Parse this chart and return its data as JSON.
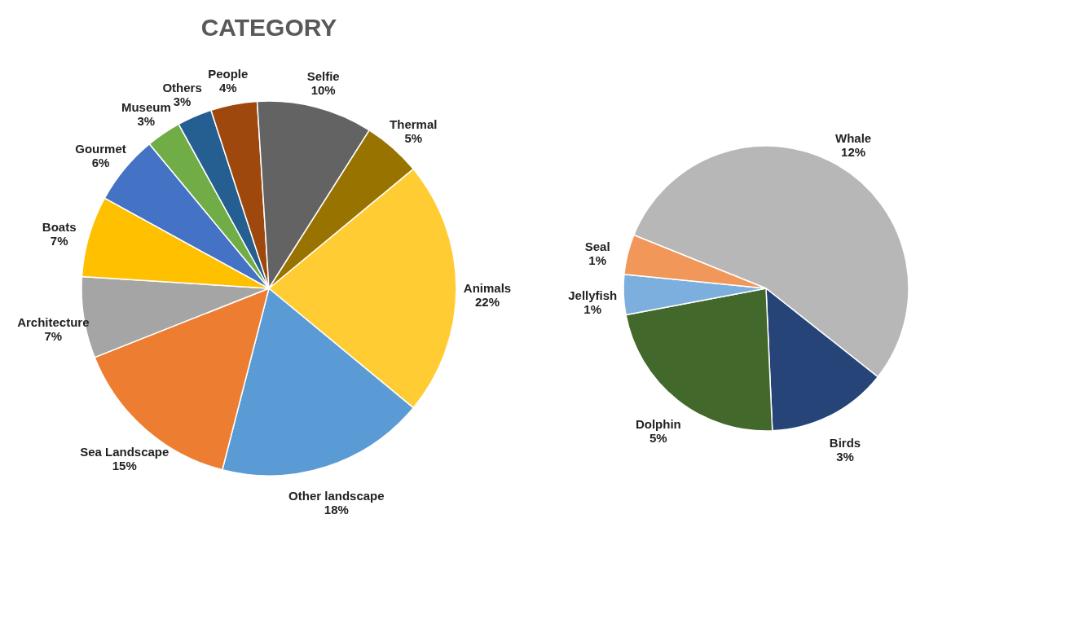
{
  "chart_data": [
    {
      "type": "pie",
      "title": "CATEGORY",
      "legend": false,
      "categories": [
        "Animals",
        "Other landscape",
        "Sea Landscape",
        "Architecture",
        "Boats",
        "Gourmet",
        "Museum",
        "Others",
        "People",
        "Selfie",
        "Thermal"
      ],
      "values": [
        22,
        18,
        15,
        7,
        7,
        6,
        3,
        3,
        4,
        10,
        5
      ],
      "value_labels": [
        "22%",
        "18%",
        "15%",
        "7%",
        "7%",
        "6%",
        "3%",
        "3%",
        "4%",
        "10%",
        "5%"
      ],
      "colors": [
        "#ffcd33",
        "#5b9bd5",
        "#ed7d31",
        "#a5a5a5",
        "#ffc000",
        "#4472c4",
        "#70ad47",
        "#255e91",
        "#9e480e",
        "#636363",
        "#997300"
      ]
    },
    {
      "type": "pie",
      "legend": false,
      "categories": [
        "Whale",
        "Birds",
        "Dolphin",
        "Jellyfish",
        "Seal"
      ],
      "values": [
        12,
        3,
        5,
        1,
        1
      ],
      "value_labels": [
        "12%",
        "3%",
        "5%",
        "1%",
        "1%"
      ],
      "colors": [
        "#b7b7b7",
        "#264478",
        "#43682b",
        "#7cafdd",
        "#f1975a"
      ]
    }
  ]
}
